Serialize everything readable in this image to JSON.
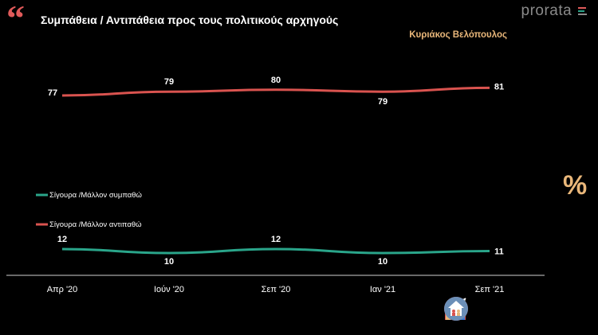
{
  "header": {
    "quote_glyph": "“",
    "title": "Συμπάθεια / Αντιπάθεια προς τους πολιτικούς αρχηγούς",
    "logo": "prorata",
    "person": "Κυριάκος Βελόπουλος",
    "percent_symbol": "%"
  },
  "colors": {
    "sympathy": "#2aa58a",
    "antipathy": "#d9534f",
    "accent": "#e9b77a"
  },
  "chart_data": {
    "type": "line",
    "categories": [
      "Απρ '20",
      "Ιούν '20",
      "Σεπ '20",
      "Ιαν '21",
      "Σεπ '21"
    ],
    "series": [
      {
        "name": "Σίγουρα /Μάλλον αντιπαθώ",
        "values": [
          77,
          79,
          80,
          79,
          81
        ],
        "color": "#d9534f"
      },
      {
        "name": "Σίγουρα /Μάλλον συμπαθώ",
        "values": [
          12,
          10,
          12,
          10,
          11
        ],
        "color": "#2aa58a"
      }
    ],
    "legend": [
      "Σίγουρα /Μάλλον συμπαθώ",
      "Σίγουρα /Μάλλον αντιπαθώ"
    ],
    "ylim": [
      0,
      100
    ],
    "title": "Συμπάθεια / Αντιπάθεια προς τους πολιτικούς αρχηγούς",
    "subtitle": "Κυριάκος Βελόπουλος"
  },
  "footer_icons": [
    "bar-chart-icon",
    "ballot-box-icon",
    "trend-up-icon",
    "house-people-icon"
  ]
}
